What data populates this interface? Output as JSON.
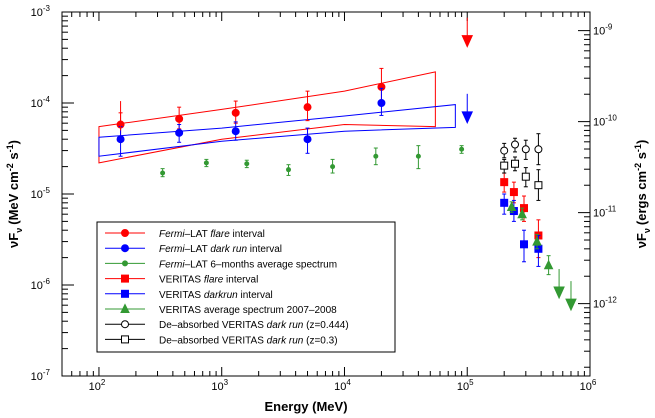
{
  "chart_data": {
    "type": "scatter",
    "xlabel": "Energy (MeV)",
    "ylabel": "νF",
    "ylabel_sub": "ν",
    "ylabel_units": "(MeV cm",
    "ylabel_right": "νF",
    "ylabel_right_sub": "ν",
    "ylabel_right_units": "(ergs cm",
    "x_scale": "log",
    "y_scale": "log",
    "xlim": [
      50,
      1000000
    ],
    "ylim": [
      1e-07,
      0.001
    ],
    "y_right_factor": 1.602e-06,
    "x_ticks": [
      {
        "value": 100,
        "mant": "10",
        "exp": "2"
      },
      {
        "value": 1000,
        "mant": "10",
        "exp": "3"
      },
      {
        "value": 10000,
        "mant": "10",
        "exp": "4"
      },
      {
        "value": 100000,
        "mant": "10",
        "exp": "5"
      },
      {
        "value": 1000000,
        "mant": "10",
        "exp": "6"
      }
    ],
    "y_ticks": [
      {
        "value": 1e-07,
        "mant": "10",
        "exp": "-7"
      },
      {
        "value": 1e-06,
        "mant": "10",
        "exp": "-6"
      },
      {
        "value": 1e-05,
        "mant": "10",
        "exp": "-5"
      },
      {
        "value": 0.0001,
        "mant": "10",
        "exp": "-4"
      },
      {
        "value": 0.001,
        "mant": "10",
        "exp": "-3"
      }
    ],
    "y_right_ticks": [
      {
        "value": 1e-12,
        "mant": "10",
        "exp": "-12"
      },
      {
        "value": 1e-11,
        "mant": "10",
        "exp": "-11"
      },
      {
        "value": 1e-10,
        "mant": "10",
        "exp": "-10"
      },
      {
        "value": 1e-09,
        "mant": "10",
        "exp": "-9"
      }
    ],
    "bowties": [
      {
        "name": "fermi-flare-butterfly",
        "color": "#ff0000",
        "upper": [
          [
            100,
            5.5e-05
          ],
          [
            1000,
            8.5e-05
          ],
          [
            10000,
            0.000135
          ],
          [
            55000,
            0.00022
          ]
        ],
        "lower": [
          [
            100,
            2.2e-05
          ],
          [
            1000,
            4e-05
          ],
          [
            10000,
            5.8e-05
          ],
          [
            55000,
            5.5e-05
          ]
        ]
      },
      {
        "name": "fermi-dark-butterfly",
        "color": "#0000ff",
        "upper": [
          [
            100,
            4.2e-05
          ],
          [
            1000,
            5.3e-05
          ],
          [
            10000,
            7.2e-05
          ],
          [
            80000,
            9.6e-05
          ]
        ],
        "lower": [
          [
            100,
            2.6e-05
          ],
          [
            1000,
            3.8e-05
          ],
          [
            10000,
            4.9e-05
          ],
          [
            80000,
            5.4e-05
          ]
        ]
      }
    ],
    "series": [
      {
        "name": "Fermi-LAT flare interval",
        "color": "#ff0000",
        "marker": "circle",
        "filled": true,
        "points": [
          [
            150,
            5.8e-05,
            7.8e-05,
            4.3e-05
          ],
          [
            450,
            6.7e-05,
            9e-05,
            5.2e-05
          ],
          [
            1300,
            7.8e-05,
            0.000105,
            6e-05
          ],
          [
            5000,
            9e-05,
            0.000135,
            6.4e-05
          ],
          [
            20000,
            0.00015,
            0.00024,
            0.0001
          ]
        ]
      },
      {
        "name": "Fermi-LAT dark run interval",
        "color": "#0000ff",
        "marker": "circle",
        "filled": true,
        "points": [
          [
            150,
            4e-05,
            5.5e-05,
            2.6e-05
          ],
          [
            450,
            4.7e-05,
            5.8e-05,
            3.7e-05
          ],
          [
            1300,
            4.9e-05,
            6.2e-05,
            3.9e-05
          ],
          [
            5000,
            4e-05,
            5.3e-05,
            2.8e-05
          ],
          [
            20000,
            0.0001,
            0.000145,
            7.3e-05
          ]
        ]
      },
      {
        "name": "Fermi-LAT 6-months average spectrum",
        "color": "#339933",
        "marker": "circle",
        "filled": true,
        "size": 2,
        "points": [
          [
            330,
            1.7e-05,
            1.9e-05,
            1.55e-05
          ],
          [
            750,
            2.2e-05,
            2.4e-05,
            2e-05
          ],
          [
            1600,
            2.15e-05,
            2.35e-05,
            1.95e-05
          ],
          [
            3500,
            1.85e-05,
            2.1e-05,
            1.6e-05
          ],
          [
            8000,
            2e-05,
            2.4e-05,
            1.7e-05
          ],
          [
            18000,
            2.6e-05,
            3.2e-05,
            2.1e-05
          ],
          [
            40000,
            2.6e-05,
            3.4e-05,
            1.9e-05
          ],
          [
            90000,
            3.1e-05,
            3.4e-05,
            2.8e-05
          ]
        ]
      },
      {
        "name": "VERITAS flare interval",
        "color": "#ff0000",
        "marker": "square",
        "filled": true,
        "points": [
          [
            200000,
            1.35e-05,
            1.7e-05,
            1.05e-05
          ],
          [
            240000,
            1.05e-05,
            1.35e-05,
            8e-06
          ],
          [
            290000,
            7e-06,
            9.5e-06,
            5e-06
          ],
          [
            380000,
            3.5e-06,
            5.2e-06,
            2e-06
          ]
        ]
      },
      {
        "name": "VERITAS darkrun interval",
        "color": "#0000ff",
        "marker": "square",
        "filled": true,
        "points": [
          [
            200000,
            8e-06,
            1e-05,
            6e-06
          ],
          [
            240000,
            6.5e-06,
            8.5e-06,
            5e-06
          ],
          [
            290000,
            2.8e-06,
            4e-06,
            1.8e-06
          ],
          [
            380000,
            2.5e-06,
            3.5e-06,
            1.6e-06
          ]
        ]
      },
      {
        "name": "VERITAS average spectrum 2007-2008",
        "color": "#339933",
        "marker": "triangle",
        "filled": true,
        "points": [
          [
            230000,
            7.2e-06,
            8.2e-06,
            6.3e-06
          ],
          [
            280000,
            6e-06,
            7e-06,
            5.2e-06
          ],
          [
            370000,
            3e-06,
            3.6e-06,
            2.5e-06
          ],
          [
            460000,
            1.65e-06,
            2.1e-06,
            1.3e-06
          ]
        ]
      },
      {
        "name": "De-absorbed VERITAS dark run (z=0.444)",
        "color": "#000000",
        "marker": "circle",
        "filled": false,
        "points": [
          [
            200000,
            3e-05,
            3.6e-05,
            2.5e-05
          ],
          [
            245000,
            3.5e-05,
            4.1e-05,
            2.9e-05
          ],
          [
            300000,
            3.1e-05,
            3.9e-05,
            2.4e-05
          ],
          [
            380000,
            3.1e-05,
            4.6e-05,
            2.1e-05
          ]
        ]
      },
      {
        "name": "De-absorbed VERITAS dark run (z=0.3)",
        "color": "#000000",
        "marker": "square",
        "filled": false,
        "points": [
          [
            200000,
            2.05e-05,
            2.4e-05,
            1.7e-05
          ],
          [
            245000,
            2.15e-05,
            2.55e-05,
            1.8e-05
          ],
          [
            300000,
            1.55e-05,
            1.95e-05,
            1.2e-05
          ],
          [
            380000,
            1.25e-05,
            1.85e-05,
            8.5e-06
          ]
        ]
      }
    ],
    "upper_limits": [
      {
        "name": "flare-upper-limit",
        "color": "#ff0000",
        "x": 100000,
        "y": 0.00055
      },
      {
        "name": "dark-upper-limit",
        "color": "#0000ff",
        "x": 100000,
        "y": 8e-05
      },
      {
        "name": "fermi-flare-upper-limit-low",
        "color": "#ff0000",
        "x": 150000,
        "y": 0,
        "hidden": true
      },
      {
        "name": "veritas-avg-upper-limit-1",
        "color": "#339933",
        "x": 560000,
        "y": 9.5e-07
      },
      {
        "name": "veritas-avg-upper-limit-2",
        "color": "#339933",
        "x": 700000,
        "y": 7e-07
      }
    ],
    "first_flare_arrow": {
      "x": 150,
      "y_top": 0.000105,
      "y_bottom": 5e-05
    },
    "legend": {
      "placement": "bottom-left",
      "entries": [
        {
          "series": 0,
          "italic_prefix": "Fermi",
          "text_a": "–LAT ",
          "italic": "flare",
          "text_b": " interval"
        },
        {
          "series": 1,
          "italic_prefix": "Fermi",
          "text_a": "–LAT ",
          "italic": "dark run",
          "text_b": " interval"
        },
        {
          "series": 2,
          "italic_prefix": "Fermi",
          "text_a": "–LAT 6–months average spectrum",
          "italic": "",
          "text_b": ""
        },
        {
          "series": 3,
          "italic_prefix": "",
          "text_a": "VERITAS ",
          "italic": "flare",
          "text_b": " interval"
        },
        {
          "series": 4,
          "italic_prefix": "",
          "text_a": "VERITAS ",
          "italic": "darkrun",
          "text_b": " interval"
        },
        {
          "series": 5,
          "italic_prefix": "",
          "text_a": "VERITAS average spectrum 2007–2008",
          "italic": "",
          "text_b": ""
        },
        {
          "series": 6,
          "italic_prefix": "",
          "text_a": "De–absorbed VERITAS ",
          "italic": "dark run",
          "text_b": " (z=0.444)"
        },
        {
          "series": 7,
          "italic_prefix": "",
          "text_a": "De–absorbed VERITAS ",
          "italic": "dark run",
          "text_b": " (z=0.3)"
        }
      ]
    }
  }
}
